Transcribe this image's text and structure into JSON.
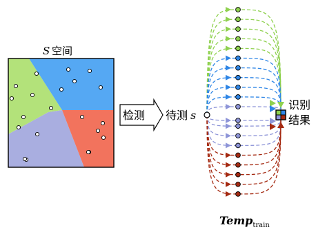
{
  "space_title": {
    "symbol": "S",
    "text": "空间"
  },
  "detect_label": "检测",
  "test_label": {
    "text": "待测",
    "symbol": "s"
  },
  "result_label": {
    "line1": "识别",
    "line2": "结果"
  },
  "template_label": {
    "main": "Temp",
    "sub": "train"
  },
  "region_colors": {
    "green": "#b3e27a",
    "blue": "#55a8f3",
    "lavender": "#a9aee0",
    "red": "#f2735d"
  },
  "path_groups": [
    {
      "name": "green",
      "color": "#8fd14f",
      "count": 5
    },
    {
      "name": "blue",
      "color": "#2f86e6",
      "count": 5
    },
    {
      "name": "lavender",
      "color": "#8e95d8",
      "count": 5
    },
    {
      "name": "red",
      "color": "#a52a12",
      "count": 5
    }
  ]
}
